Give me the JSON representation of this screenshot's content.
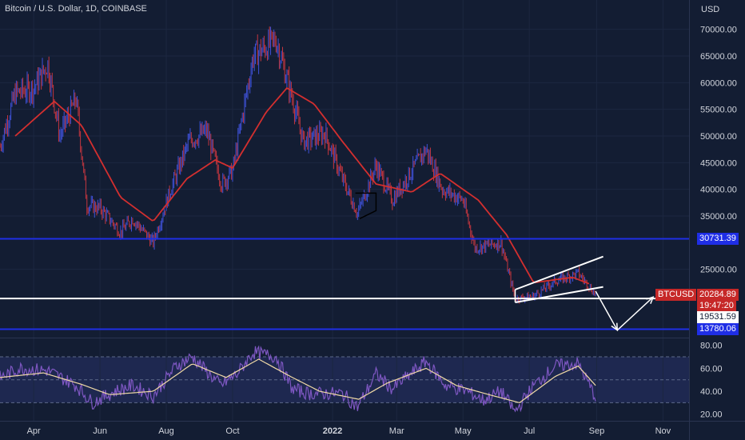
{
  "header": {
    "title": "Bitcoin / U.S. Dollar, 1D, COINBASE"
  },
  "axis": {
    "currency_label": "USD"
  },
  "colors": {
    "background": "#131d33",
    "up": "#3f51d8",
    "down": "#c5363f",
    "ma": "#d32f2f",
    "support": "#1f2ee6",
    "white": "#ffffff",
    "rsi": "#7e57c2",
    "rsi_ma": "#f0d9a6",
    "badge_red": "#c62828"
  },
  "price_labels": {
    "current_symbol": "BTCUSD",
    "current_value": "20284.89",
    "countdown": "19:47:20",
    "line_white": "19531.59",
    "line_blue_upper": "30731.39",
    "line_blue_lower": "13780.06"
  },
  "chart_data": [
    {
      "type": "candlestick",
      "title": "Bitcoin / U.S. Dollar, 1D, COINBASE",
      "ylabel": "USD",
      "ylim": [
        12500,
        72500
      ],
      "x_ticks": [
        "Apr",
        "Jun",
        "Aug",
        "Oct",
        "2022",
        "Mar",
        "May",
        "Jul",
        "Sep",
        "Nov"
      ],
      "y_ticks": [
        "70000.00",
        "65000.00",
        "60000.00",
        "55000.00",
        "50000.00",
        "45000.00",
        "40000.00",
        "35000.00",
        "25000.00"
      ],
      "horizontal_lines": [
        30731.39,
        19531.59,
        13780.06
      ],
      "moving_average_anchor": [
        {
          "date": "2021-03-15",
          "value": 50000
        },
        {
          "date": "2021-04-20",
          "value": 56500
        },
        {
          "date": "2021-05-15",
          "value": 52000
        },
        {
          "date": "2021-06-20",
          "value": 38500
        },
        {
          "date": "2021-07-20",
          "value": 34000
        },
        {
          "date": "2021-08-20",
          "value": 42000
        },
        {
          "date": "2021-09-15",
          "value": 45500
        },
        {
          "date": "2021-10-01",
          "value": 44000
        },
        {
          "date": "2021-11-01",
          "value": 54500
        },
        {
          "date": "2021-11-20",
          "value": 59000
        },
        {
          "date": "2021-12-15",
          "value": 56000
        },
        {
          "date": "2022-01-10",
          "value": 49000
        },
        {
          "date": "2022-02-10",
          "value": 41000
        },
        {
          "date": "2022-03-15",
          "value": 39500
        },
        {
          "date": "2022-04-10",
          "value": 43000
        },
        {
          "date": "2022-05-15",
          "value": 38000
        },
        {
          "date": "2022-06-10",
          "value": 31500
        },
        {
          "date": "2022-07-05",
          "value": 22500
        },
        {
          "date": "2022-08-10",
          "value": 23500
        },
        {
          "date": "2022-08-25",
          "value": 22300
        }
      ],
      "price_anchor": [
        {
          "date": "2021-03-01",
          "value": 48000
        },
        {
          "date": "2021-03-15",
          "value": 58000
        },
        {
          "date": "2021-04-01",
          "value": 59000
        },
        {
          "date": "2021-04-14",
          "value": 63500
        },
        {
          "date": "2021-04-25",
          "value": 50000
        },
        {
          "date": "2021-05-10",
          "value": 57000
        },
        {
          "date": "2021-05-20",
          "value": 37000
        },
        {
          "date": "2021-06-01",
          "value": 36500
        },
        {
          "date": "2021-06-20",
          "value": 32000
        },
        {
          "date": "2021-07-01",
          "value": 34500
        },
        {
          "date": "2021-07-20",
          "value": 30000
        },
        {
          "date": "2021-08-05",
          "value": 40000
        },
        {
          "date": "2021-08-22",
          "value": 49000
        },
        {
          "date": "2021-09-07",
          "value": 51000
        },
        {
          "date": "2021-09-21",
          "value": 41000
        },
        {
          "date": "2021-10-01",
          "value": 43500
        },
        {
          "date": "2021-10-20",
          "value": 65000
        },
        {
          "date": "2021-11-10",
          "value": 68000
        },
        {
          "date": "2021-11-25",
          "value": 57000
        },
        {
          "date": "2021-12-05",
          "value": 49000
        },
        {
          "date": "2021-12-25",
          "value": 50500
        },
        {
          "date": "2022-01-10",
          "value": 42000
        },
        {
          "date": "2022-01-24",
          "value": 35500
        },
        {
          "date": "2022-02-10",
          "value": 44500
        },
        {
          "date": "2022-02-25",
          "value": 38000
        },
        {
          "date": "2022-03-28",
          "value": 47500
        },
        {
          "date": "2022-04-12",
          "value": 40000
        },
        {
          "date": "2022-05-01",
          "value": 38000
        },
        {
          "date": "2022-05-12",
          "value": 29000
        },
        {
          "date": "2022-06-05",
          "value": 30000
        },
        {
          "date": "2022-06-18",
          "value": 19500
        },
        {
          "date": "2022-07-05",
          "value": 20000
        },
        {
          "date": "2022-07-25",
          "value": 22800
        },
        {
          "date": "2022-08-15",
          "value": 24300
        },
        {
          "date": "2022-08-31",
          "value": 20284.89
        }
      ],
      "projection": [
        {
          "date": "2022-08-31",
          "value": 20900
        },
        {
          "date": "2022-09-20",
          "value": 13600
        },
        {
          "date": "2022-10-23",
          "value": 19800
        }
      ],
      "channel": [
        {
          "name": "upper",
          "from": {
            "date": "2022-06-18",
            "value": 21200
          },
          "to": {
            "date": "2022-09-07",
            "value": 27400
          }
        },
        {
          "name": "lower",
          "from": {
            "date": "2022-06-18",
            "value": 18800
          },
          "to": {
            "date": "2022-09-07",
            "value": 21700
          }
        }
      ],
      "current_price": 20284.89
    },
    {
      "type": "line",
      "name": "RSI",
      "ylim": [
        17,
        84
      ],
      "y_ticks": [
        "80.00",
        "60.00",
        "40.00",
        "20.00"
      ],
      "band": [
        30,
        70
      ],
      "midline": 50,
      "rsi_anchor": [
        {
          "date": "2021-03-01",
          "value": 52
        },
        {
          "date": "2021-03-20",
          "value": 60
        },
        {
          "date": "2021-04-14",
          "value": 58
        },
        {
          "date": "2021-05-10",
          "value": 45
        },
        {
          "date": "2021-05-25",
          "value": 30
        },
        {
          "date": "2021-06-15",
          "value": 40
        },
        {
          "date": "2021-07-01",
          "value": 45
        },
        {
          "date": "2021-07-20",
          "value": 36
        },
        {
          "date": "2021-08-10",
          "value": 62
        },
        {
          "date": "2021-08-25",
          "value": 70
        },
        {
          "date": "2021-09-20",
          "value": 45
        },
        {
          "date": "2021-10-05",
          "value": 55
        },
        {
          "date": "2021-10-20",
          "value": 74
        },
        {
          "date": "2021-11-10",
          "value": 70
        },
        {
          "date": "2021-11-25",
          "value": 42
        },
        {
          "date": "2021-12-10",
          "value": 38
        },
        {
          "date": "2022-01-10",
          "value": 38
        },
        {
          "date": "2022-01-24",
          "value": 26
        },
        {
          "date": "2022-02-10",
          "value": 55
        },
        {
          "date": "2022-02-25",
          "value": 42
        },
        {
          "date": "2022-03-28",
          "value": 66
        },
        {
          "date": "2022-04-15",
          "value": 45
        },
        {
          "date": "2022-05-05",
          "value": 40
        },
        {
          "date": "2022-05-20",
          "value": 32
        },
        {
          "date": "2022-06-05",
          "value": 40
        },
        {
          "date": "2022-06-18",
          "value": 22
        },
        {
          "date": "2022-07-05",
          "value": 45
        },
        {
          "date": "2022-07-25",
          "value": 62
        },
        {
          "date": "2022-08-15",
          "value": 64
        },
        {
          "date": "2022-08-31",
          "value": 35
        }
      ],
      "rsi_ma_anchor": [
        {
          "date": "2021-03-01",
          "value": 52
        },
        {
          "date": "2021-04-10",
          "value": 56
        },
        {
          "date": "2021-05-15",
          "value": 46
        },
        {
          "date": "2021-06-10",
          "value": 37
        },
        {
          "date": "2021-07-20",
          "value": 40
        },
        {
          "date": "2021-08-25",
          "value": 64
        },
        {
          "date": "2021-09-25",
          "value": 52
        },
        {
          "date": "2021-10-25",
          "value": 68
        },
        {
          "date": "2021-11-25",
          "value": 52
        },
        {
          "date": "2021-12-20",
          "value": 40
        },
        {
          "date": "2022-01-25",
          "value": 33
        },
        {
          "date": "2022-02-20",
          "value": 47
        },
        {
          "date": "2022-03-28",
          "value": 60
        },
        {
          "date": "2022-04-25",
          "value": 45
        },
        {
          "date": "2022-05-25",
          "value": 37
        },
        {
          "date": "2022-06-22",
          "value": 30
        },
        {
          "date": "2022-07-25",
          "value": 53
        },
        {
          "date": "2022-08-15",
          "value": 62
        },
        {
          "date": "2022-08-31",
          "value": 45
        }
      ]
    }
  ]
}
